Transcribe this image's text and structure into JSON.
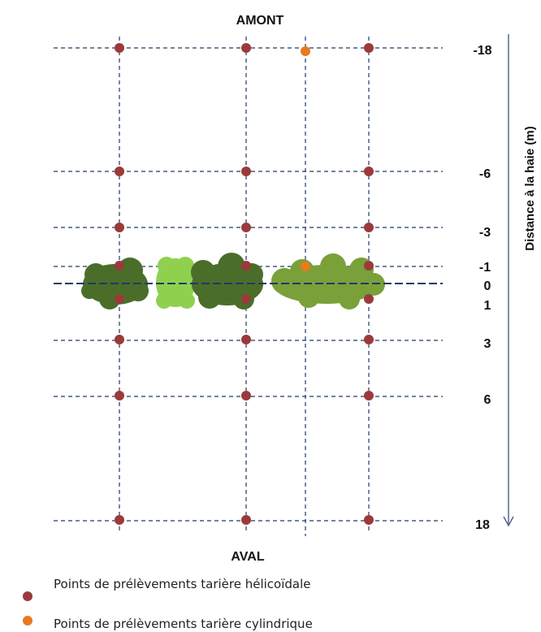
{
  "labels": {
    "top": "AMONT",
    "bottom": "AVAL",
    "axis_title": "Distance à la haie (m)"
  },
  "distances": [
    "-18",
    "-6",
    "-3",
    "-1",
    "0",
    "1",
    "3",
    "6",
    "18"
  ],
  "legend": {
    "helical": "Points de prélèvements tarière hélicoïdale",
    "cylindrical": "Points de prélèvements tarière cylindrique"
  },
  "colors": {
    "helical_point": "#9b3a3a",
    "cylindrical_point": "#e87a1e",
    "grid_line": "#1f3a66",
    "hedge_dark": "#4a6e2a",
    "hedge_light": "#8fd14f",
    "hedge_medium": "#7aa03a",
    "axis_arrow": "#4a5f8a"
  }
}
